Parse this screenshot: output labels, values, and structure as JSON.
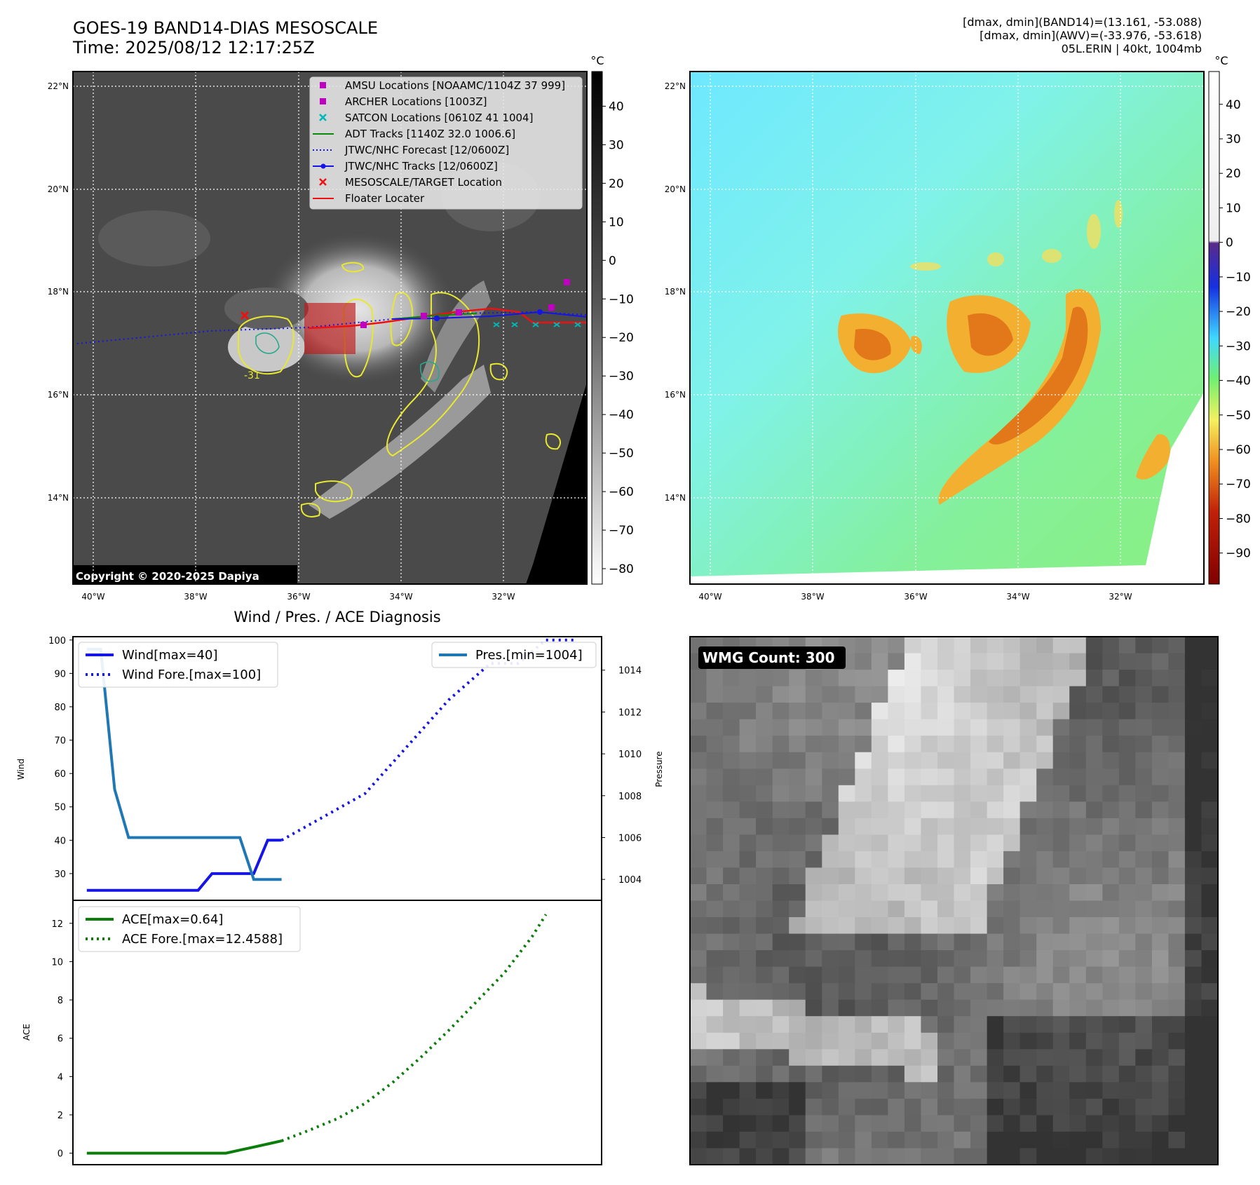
{
  "header": {
    "title_line1": "GOES-19 BAND14-DIAS MESOSCALE",
    "title_line2": "Time: 2025/08/12 12:17:25Z",
    "info_line1": "[dmax, dmin](BAND14)=(13.161, -53.088)",
    "info_line2": "[dmax, dmin](AWV)=(-33.976, -53.618)",
    "info_line3": "05L.ERIN | 40kt, 1004mb"
  },
  "ir_map": {
    "lat_labels": [
      "22°N",
      "20°N",
      "18°N",
      "16°N",
      "14°N"
    ],
    "lon_labels": [
      "40°W",
      "38°W",
      "36°W",
      "34°W",
      "32°W"
    ],
    "contour_label": "-31",
    "copyright": "Copyright © 2020-2025 Dapiya",
    "colorbar_unit": "°C",
    "colorbar_ticks": [
      "40",
      "30",
      "20",
      "10",
      "0",
      "−10",
      "−20",
      "−30",
      "−40",
      "−50",
      "−60",
      "−70",
      "−80"
    ],
    "legend": [
      {
        "label": "AMSU Locations [NOAAMC/1104Z 37 999]",
        "marker": "square",
        "color": "#c000c0"
      },
      {
        "label": "ARCHER Locations [1003Z]",
        "marker": "square",
        "color": "#c000c0"
      },
      {
        "label": "SATCON Locations [0610Z 41 1004]",
        "marker": "x",
        "color": "#00b8b8"
      },
      {
        "label": "ADT Tracks [1140Z 32.0 1006.6]",
        "marker": "line",
        "color": "#0a8a0a"
      },
      {
        "label": "JTWC/NHC Forecast [12/0600Z]",
        "marker": "dotted",
        "color": "#1515e6"
      },
      {
        "label": "JTWC/NHC Tracks [12/0600Z]",
        "marker": "line-dot",
        "color": "#1515e6"
      },
      {
        "label": "MESOSCALE/TARGET Location",
        "marker": "x",
        "color": "#ee1111"
      },
      {
        "label": "Floater Locater",
        "marker": "line",
        "color": "#ee1111"
      }
    ]
  },
  "awv_map": {
    "lat_labels": [
      "22°N",
      "20°N",
      "18°N",
      "16°N",
      "14°N"
    ],
    "lon_labels": [
      "40°W",
      "38°W",
      "36°W",
      "34°W",
      "32°W"
    ],
    "colorbar_unit": "°C",
    "colorbar_ticks": [
      "40",
      "30",
      "20",
      "10",
      "0",
      "−10",
      "−20",
      "−30",
      "−40",
      "−50",
      "−60",
      "−70",
      "−80",
      "−90"
    ]
  },
  "wmg_panel": {
    "label": "WMG Count: 300"
  },
  "chart_data": [
    {
      "type": "line",
      "title": "Wind / Pres. / ACE Diagnosis",
      "ylabel": "Wind",
      "ylabel_right": "Pressure",
      "ylim": [
        22,
        101
      ],
      "yticks": [
        "100",
        "90",
        "80",
        "70",
        "60",
        "50",
        "40",
        "30"
      ],
      "ylim_right": [
        1003,
        1015.6
      ],
      "yticks_right": [
        "1014",
        "1012",
        "1010",
        "1008",
        "1006",
        "1004"
      ],
      "legend_left": [
        "Wind[max=40]",
        "Wind Fore.[max=100]"
      ],
      "legend_right": [
        "Pres.[min=1004]"
      ],
      "series": [
        {
          "name": "Wind[max=40]",
          "style": "solid",
          "color": "#1515e6",
          "axis": "left",
          "x": [
            0,
            1,
            2,
            3,
            4,
            5,
            6,
            7,
            8,
            9,
            10,
            11,
            12,
            13,
            14
          ],
          "values": [
            25,
            25,
            25,
            25,
            25,
            25,
            25,
            25,
            25,
            30,
            30,
            30,
            30,
            40,
            40
          ]
        },
        {
          "name": "Wind Fore.[max=100]",
          "style": "dotted",
          "color": "#1515e6",
          "axis": "left",
          "x": [
            14,
            17,
            20,
            23,
            26,
            29,
            31,
            33,
            35
          ],
          "values": [
            40,
            47,
            54,
            68,
            82,
            93,
            93,
            100,
            100
          ]
        },
        {
          "name": "Pres.[min=1004]",
          "style": "solid",
          "color": "#1f77b4",
          "axis": "right",
          "x": [
            0,
            1,
            2,
            3,
            4,
            5,
            6,
            7,
            8,
            9,
            10,
            11,
            12,
            13,
            14
          ],
          "values": [
            1015,
            1015,
            1008.3,
            1006,
            1006,
            1006,
            1006,
            1006,
            1006,
            1006,
            1006,
            1006,
            1004,
            1004,
            1004
          ]
        }
      ]
    },
    {
      "type": "line",
      "ylabel": "ACE",
      "ylim": [
        -0.6,
        13.2
      ],
      "yticks": [
        "12",
        "10",
        "8",
        "6",
        "4",
        "2",
        "0"
      ],
      "legend": [
        "ACE[max=0.64]",
        "ACE Fore.[max=12.4588]"
      ],
      "series": [
        {
          "name": "ACE[max=0.64]",
          "style": "solid",
          "color": "#0a7d0a",
          "x": [
            0,
            2,
            4,
            6,
            8,
            10,
            11,
            12,
            13,
            14
          ],
          "values": [
            0,
            0,
            0,
            0,
            0,
            0,
            0.16,
            0.32,
            0.48,
            0.64
          ]
        },
        {
          "name": "ACE Fore.[max=12.4588]",
          "style": "dotted",
          "color": "#0a7d0a",
          "x": [
            14,
            16,
            18,
            20,
            22,
            24,
            26,
            28,
            30,
            32,
            33
          ],
          "values": [
            0.64,
            1.2,
            1.8,
            2.6,
            3.7,
            5.0,
            6.4,
            7.9,
            9.4,
            11.3,
            12.4588
          ]
        }
      ]
    }
  ]
}
